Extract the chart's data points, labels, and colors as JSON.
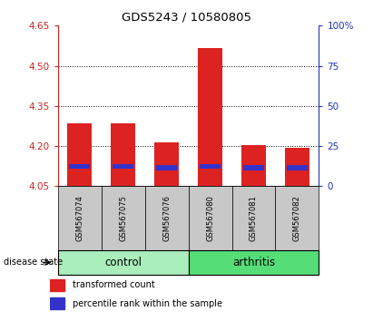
{
  "title": "GDS5243 / 10580805",
  "samples": [
    "GSM567074",
    "GSM567075",
    "GSM567076",
    "GSM567080",
    "GSM567081",
    "GSM567082"
  ],
  "red_tops": [
    4.285,
    4.285,
    4.215,
    4.565,
    4.205,
    4.195
  ],
  "blue_bottoms": [
    4.115,
    4.115,
    4.11,
    4.115,
    4.108,
    4.11
  ],
  "blue_tops": [
    4.132,
    4.132,
    4.128,
    4.132,
    4.128,
    4.128
  ],
  "bar_bottom": 4.05,
  "ylim_left": [
    4.05,
    4.65
  ],
  "ylim_right": [
    0,
    100
  ],
  "yticks_left": [
    4.05,
    4.2,
    4.35,
    4.5,
    4.65
  ],
  "yticks_right": [
    0,
    25,
    50,
    75,
    100
  ],
  "ytick_labels_right": [
    "0",
    "25",
    "50",
    "75",
    "100%"
  ],
  "red_color": "#DD2222",
  "blue_color": "#3333CC",
  "tick_color_left": "#CC2222",
  "tick_color_right": "#2233BB",
  "sample_bg_color": "#C8C8C8",
  "control_color": "#AAEEBB",
  "arthritis_color": "#55DD77",
  "legend_label_red": "transformed count",
  "legend_label_blue": "percentile rank within the sample",
  "disease_state_label": "disease state",
  "bar_width": 0.55,
  "title_fontsize": 9.5,
  "tick_fontsize": 7.5,
  "sample_fontsize": 6.0,
  "group_fontsize": 8.5,
  "legend_fontsize": 7.0
}
